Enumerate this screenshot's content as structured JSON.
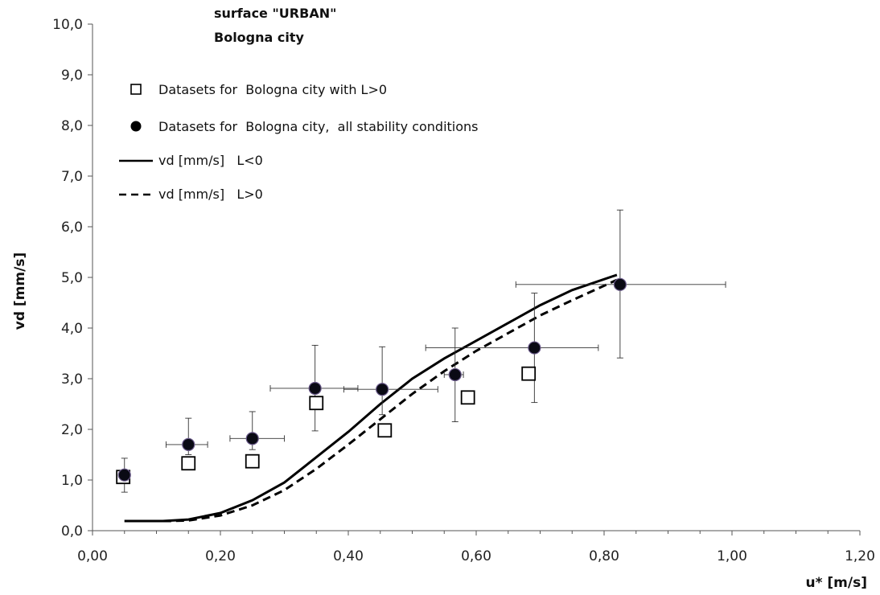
{
  "chart_data": {
    "type": "scatter",
    "title": "surface \"URBAN\"",
    "subtitle": "Bologna city",
    "xlabel": "u* [m/s]",
    "ylabel": "vd [mm/s]",
    "xlim": [
      0,
      1.2
    ],
    "ylim": [
      0,
      10
    ],
    "x_ticks": [
      "0,00",
      "0,20",
      "0,40",
      "0,60",
      "0,80",
      "1,00",
      "1,20"
    ],
    "y_ticks": [
      "0,0",
      "1,0",
      "2,0",
      "3,0",
      "4,0",
      "5,0",
      "6,0",
      "7,0",
      "8,0",
      "9,0",
      "10,0"
    ],
    "grid": false,
    "legend_position": "top-left",
    "series": [
      {
        "name": "Datasets for  Bologna city with L>0",
        "type": "scatter",
        "marker": "open-square",
        "color": "#000000",
        "x": [
          0.048,
          0.15,
          0.25,
          0.35,
          0.457,
          0.587,
          0.682
        ],
        "y": [
          1.06,
          1.33,
          1.37,
          2.52,
          1.98,
          2.63,
          3.1
        ]
      },
      {
        "name": "Datasets for  Bologna city,  all stability conditions",
        "type": "scatter",
        "marker": "filled-circle",
        "color": "#000000",
        "x": [
          0.05,
          0.15,
          0.25,
          0.348,
          0.453,
          0.567,
          0.691,
          0.825
        ],
        "y": [
          1.1,
          1.7,
          1.82,
          2.81,
          2.79,
          3.08,
          3.61,
          4.86
        ],
        "x_err_low": [
          0.0,
          0.035,
          0.035,
          0.07,
          0.06,
          0.017,
          0.17,
          0.163
        ],
        "x_err_high": [
          0.0,
          0.03,
          0.05,
          0.067,
          0.087,
          0.013,
          0.1,
          0.165
        ],
        "y_err_low": [
          0.34,
          0.2,
          0.22,
          0.84,
          0.5,
          0.93,
          1.08,
          1.45
        ],
        "y_err_high": [
          0.33,
          0.52,
          0.53,
          0.85,
          0.84,
          0.92,
          1.08,
          1.47
        ]
      },
      {
        "name": "vd [mm/s]   L<0",
        "type": "line",
        "dash": "solid",
        "color": "#000000",
        "x": [
          0.05,
          0.11,
          0.15,
          0.2,
          0.25,
          0.3,
          0.35,
          0.4,
          0.45,
          0.5,
          0.55,
          0.6,
          0.65,
          0.7,
          0.75,
          0.82
        ],
        "y": [
          0.19,
          0.19,
          0.22,
          0.35,
          0.6,
          0.95,
          1.45,
          1.95,
          2.5,
          3.0,
          3.4,
          3.75,
          4.1,
          4.45,
          4.75,
          5.05
        ]
      },
      {
        "name": "vd [mm/s]   L>0",
        "type": "line",
        "dash": "dashed",
        "color": "#000000",
        "x": [
          0.05,
          0.12,
          0.15,
          0.2,
          0.25,
          0.3,
          0.35,
          0.4,
          0.45,
          0.5,
          0.55,
          0.6,
          0.65,
          0.7,
          0.75,
          0.82
        ],
        "y": [
          0.19,
          0.19,
          0.2,
          0.3,
          0.5,
          0.8,
          1.22,
          1.7,
          2.2,
          2.7,
          3.15,
          3.55,
          3.9,
          4.25,
          4.55,
          4.95
        ]
      }
    ]
  }
}
